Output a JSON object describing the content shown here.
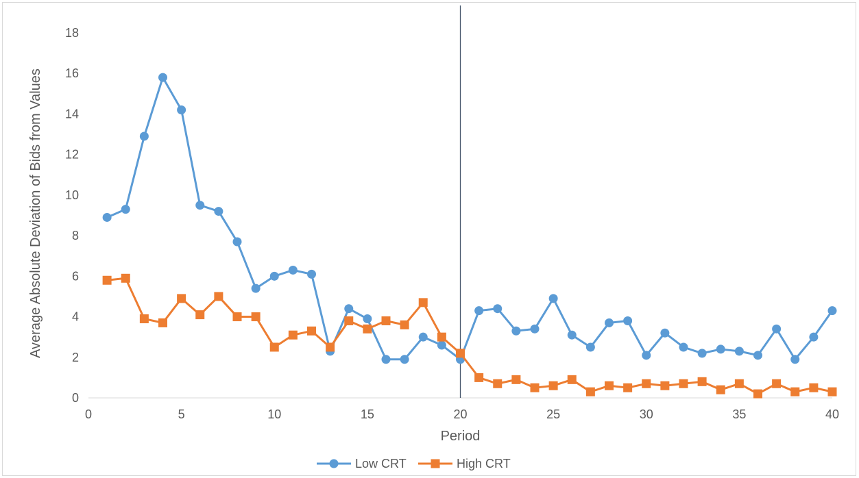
{
  "chart_data": {
    "type": "line",
    "title": "",
    "xlabel": "Period",
    "ylabel": "Average Absolute Deviation of Bids from Values",
    "xlim": [
      0,
      40
    ],
    "ylim": [
      0,
      18
    ],
    "xticks": [
      0,
      5,
      10,
      15,
      20,
      25,
      30,
      35,
      40
    ],
    "yticks": [
      0,
      2,
      4,
      6,
      8,
      10,
      12,
      14,
      16,
      18
    ],
    "grid": false,
    "legend_position": "bottom",
    "reference_line_x": 20,
    "x": [
      1,
      2,
      3,
      4,
      5,
      6,
      7,
      8,
      9,
      10,
      11,
      12,
      13,
      14,
      15,
      16,
      17,
      18,
      19,
      20,
      21,
      22,
      23,
      24,
      25,
      26,
      27,
      28,
      29,
      30,
      31,
      32,
      33,
      34,
      35,
      36,
      37,
      38,
      39,
      40
    ],
    "series": [
      {
        "name": "Low CRT",
        "color": "#5b9bd5",
        "marker": "circle",
        "values": [
          8.9,
          9.3,
          12.9,
          15.8,
          14.2,
          9.5,
          9.2,
          7.7,
          5.4,
          6.0,
          6.3,
          6.1,
          2.3,
          4.4,
          3.9,
          1.9,
          1.9,
          3.0,
          2.6,
          1.9,
          4.3,
          4.4,
          3.3,
          3.4,
          4.9,
          3.1,
          2.5,
          3.7,
          3.8,
          2.1,
          3.2,
          2.5,
          2.2,
          2.4,
          2.3,
          2.1,
          3.4,
          1.9,
          3.0,
          4.3
        ]
      },
      {
        "name": "High CRT",
        "color": "#ed7d31",
        "marker": "square",
        "values": [
          5.8,
          5.9,
          3.9,
          3.7,
          4.9,
          4.1,
          5.0,
          4.0,
          4.0,
          2.5,
          3.1,
          3.3,
          2.5,
          3.8,
          3.4,
          3.8,
          3.6,
          4.7,
          3.0,
          2.2,
          1.0,
          0.7,
          0.9,
          0.5,
          0.6,
          0.9,
          0.3,
          0.6,
          0.5,
          0.7,
          0.6,
          0.7,
          0.8,
          0.4,
          0.7,
          0.2,
          0.7,
          0.3,
          0.5,
          0.3
        ]
      }
    ]
  }
}
